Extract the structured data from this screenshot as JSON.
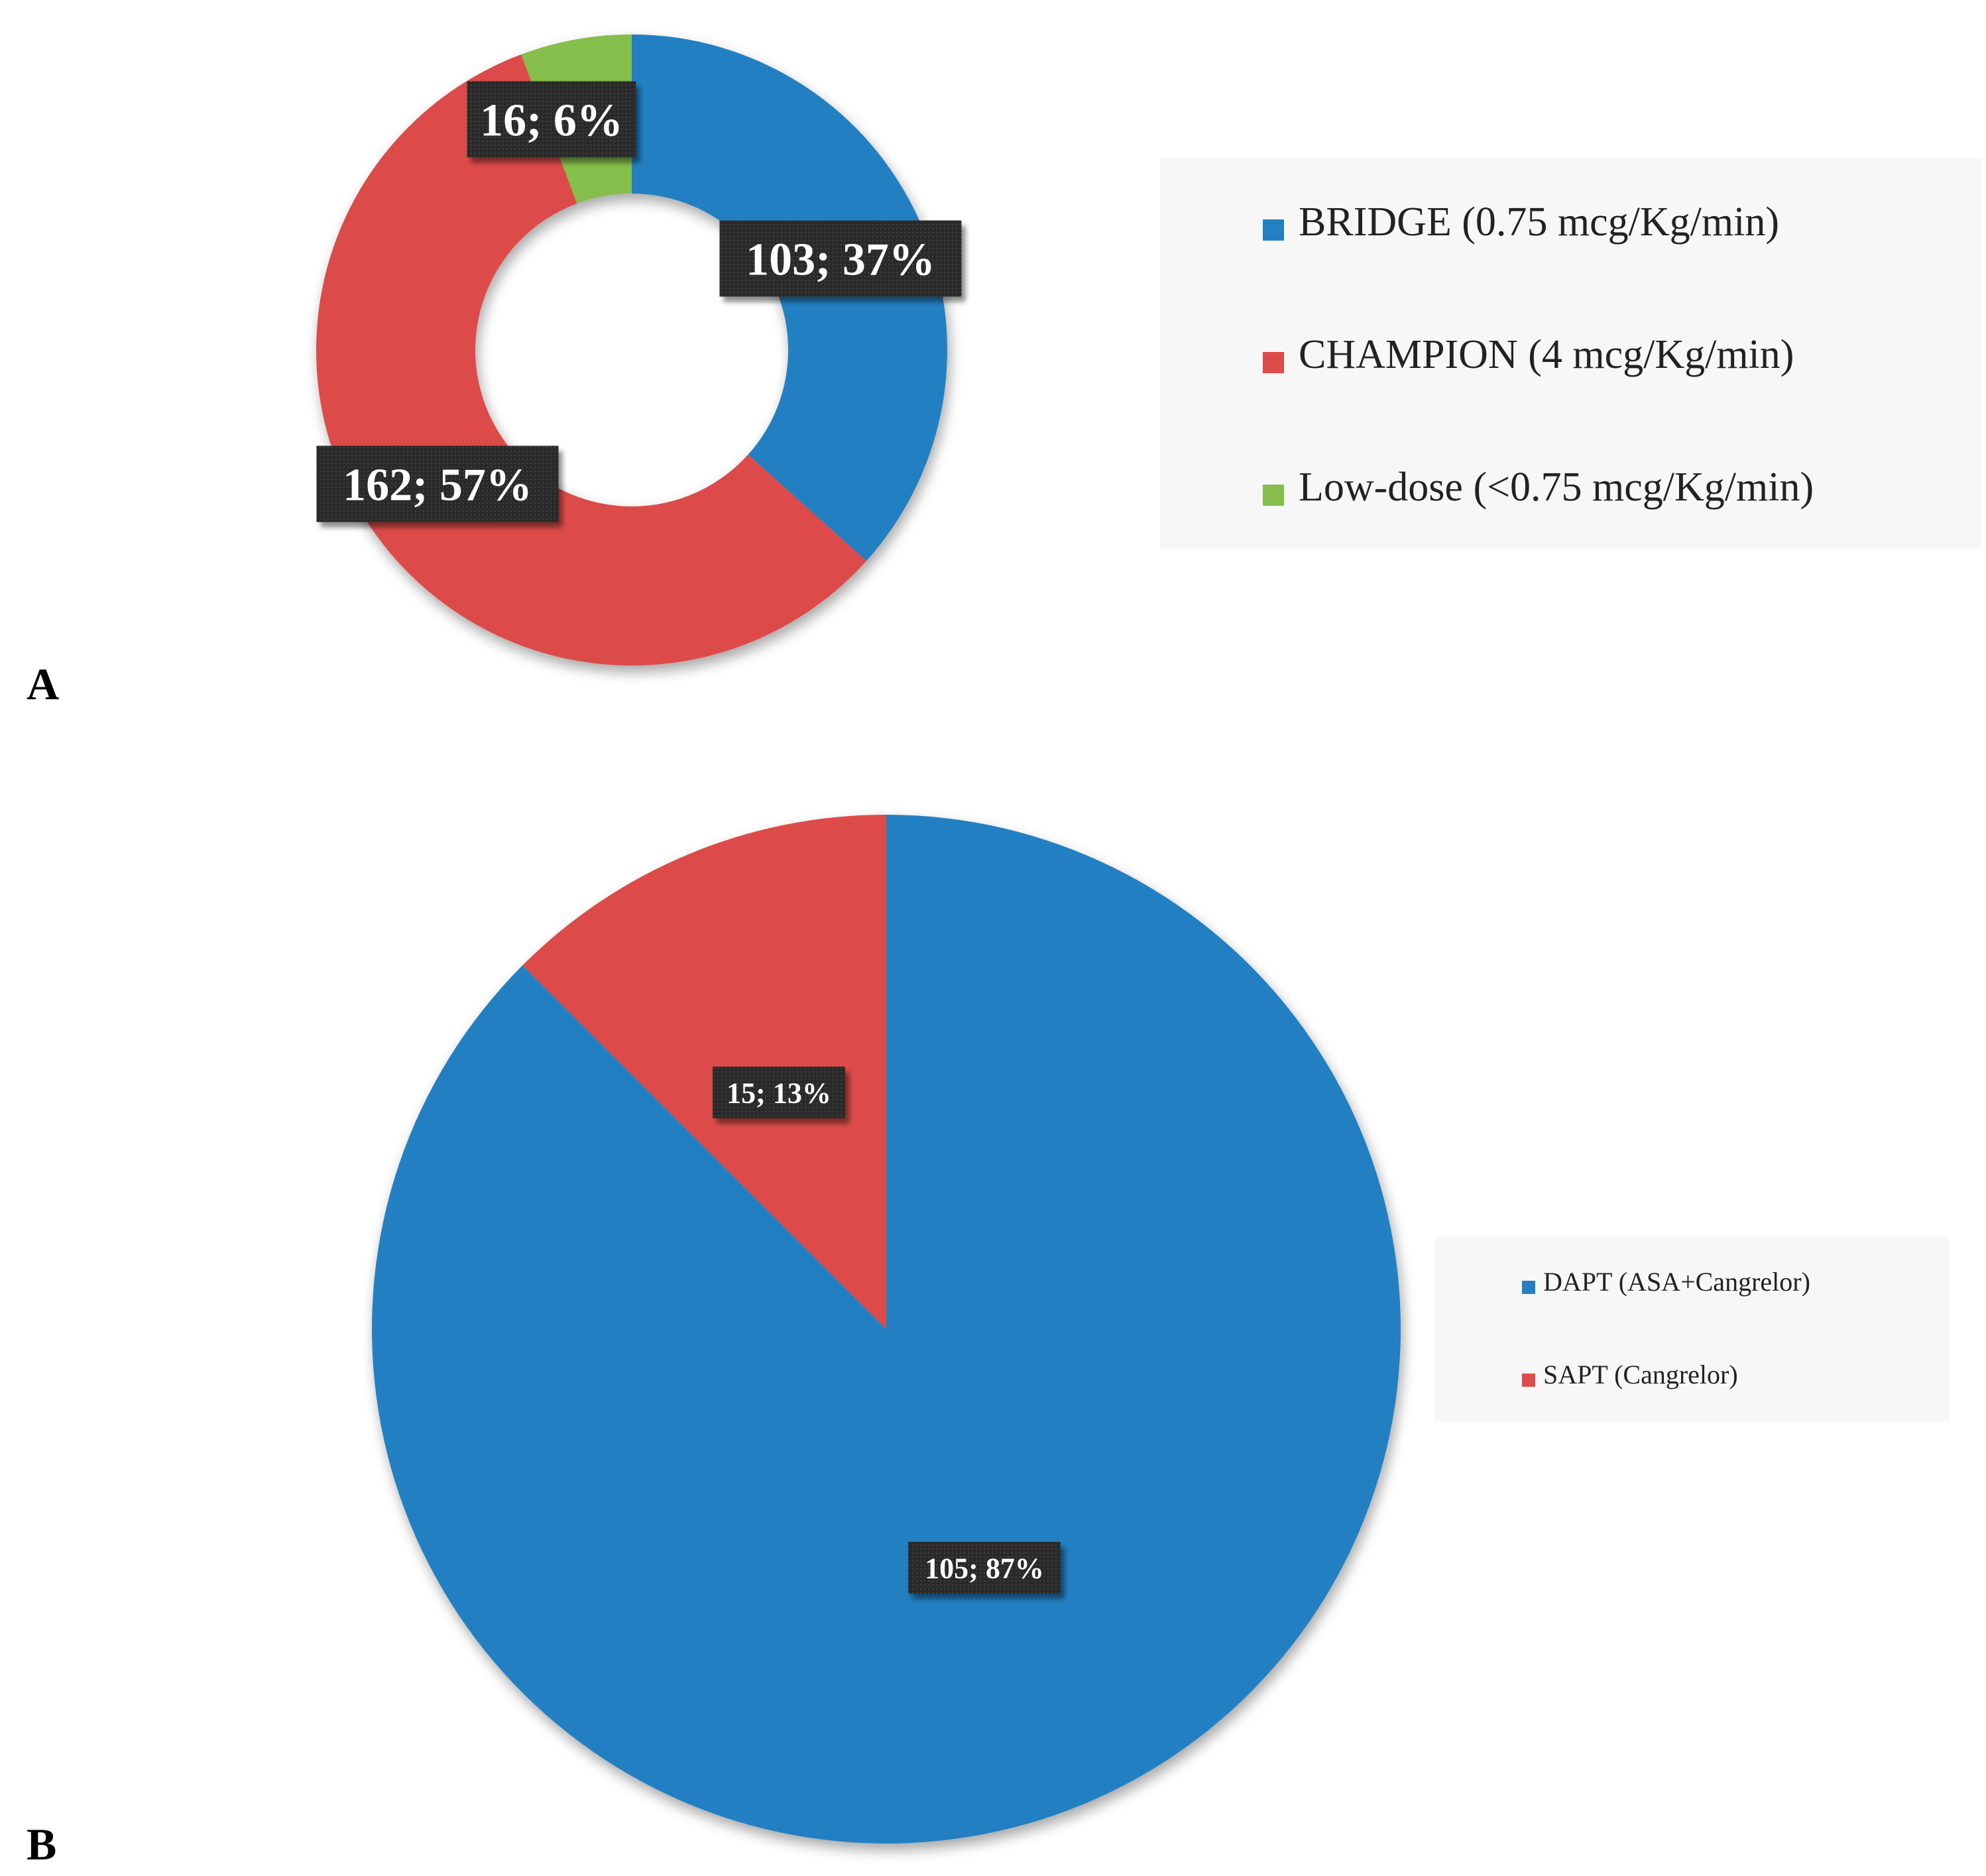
{
  "chart_data": [
    {
      "panel": "A",
      "type": "pie",
      "variant": "donut",
      "start_angle_deg": 0,
      "direction": "clockwise",
      "categories": [
        "BRIDGE (0.75 mcg/Kg/min)",
        "CHAMPION (4 mcg/Kg/min)",
        "Low-dose (<0.75 mcg/Kg/min)"
      ],
      "values": [
        103,
        162,
        16
      ],
      "percents": [
        "37%",
        "57%",
        "6%"
      ],
      "data_labels": [
        "103; 37%",
        "162; 57%",
        "16; 6%"
      ],
      "colors": [
        "#2480C2",
        "#DC4C4A",
        "#85BE4B"
      ],
      "legend_position": "right"
    },
    {
      "panel": "B",
      "type": "pie",
      "start_angle_deg": 0,
      "direction": "clockwise",
      "categories": [
        "DAPT (ASA+Cangrelor)",
        "SAPT (Cangrelor)"
      ],
      "values": [
        105,
        15
      ],
      "percents": [
        "87%",
        "13%"
      ],
      "data_labels": [
        "105; 87%",
        "15; 13%"
      ],
      "colors": [
        "#2480C2",
        "#DC4C4A"
      ],
      "legend_position": "right"
    }
  ]
}
